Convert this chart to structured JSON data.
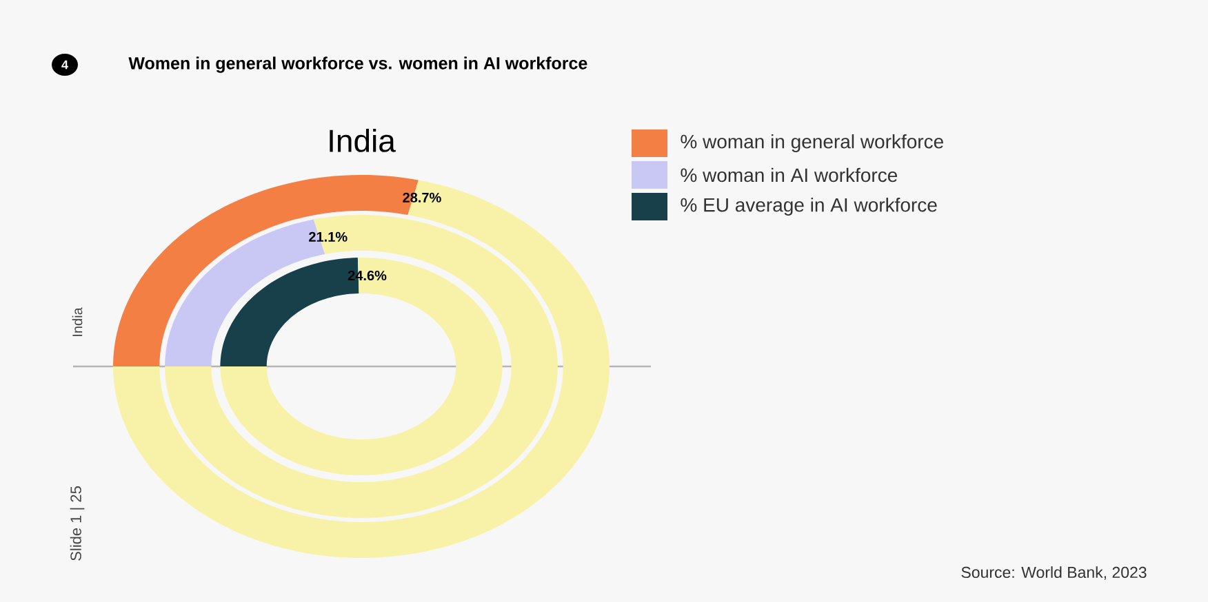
{
  "chart_data": {
    "type": "donut",
    "title": "Women in general workforce vs. women in AI workforce",
    "subtitle": "India",
    "categories": [
      null,
      null
    ],
    "series": [
      {
        "name": "% woman in general workforce",
        "colors": [
          "#f47f45",
          "#f8f2a8"
        ],
        "values": [
          28.7,
          71.3
        ],
        "value_labels": [
          "28.7%",
          null
        ]
      },
      {
        "name": "% woman in AI workforce",
        "colors": [
          "#c9c8f5",
          "#f8f2a8"
        ],
        "values": [
          21.1,
          78.9
        ],
        "value_labels": [
          "21.1%",
          null
        ]
      },
      {
        "name": "% EU average in AI workforce",
        "colors": [
          "#17404a",
          "#f8f2a8"
        ],
        "values": [
          24.6,
          75.4
        ],
        "value_labels": [
          "24.6%",
          null
        ]
      }
    ],
    "legend": "right",
    "annotations": [
      "4",
      "India",
      "Slide 1 | 25",
      "Source: World Bank, 2023"
    ]
  }
}
